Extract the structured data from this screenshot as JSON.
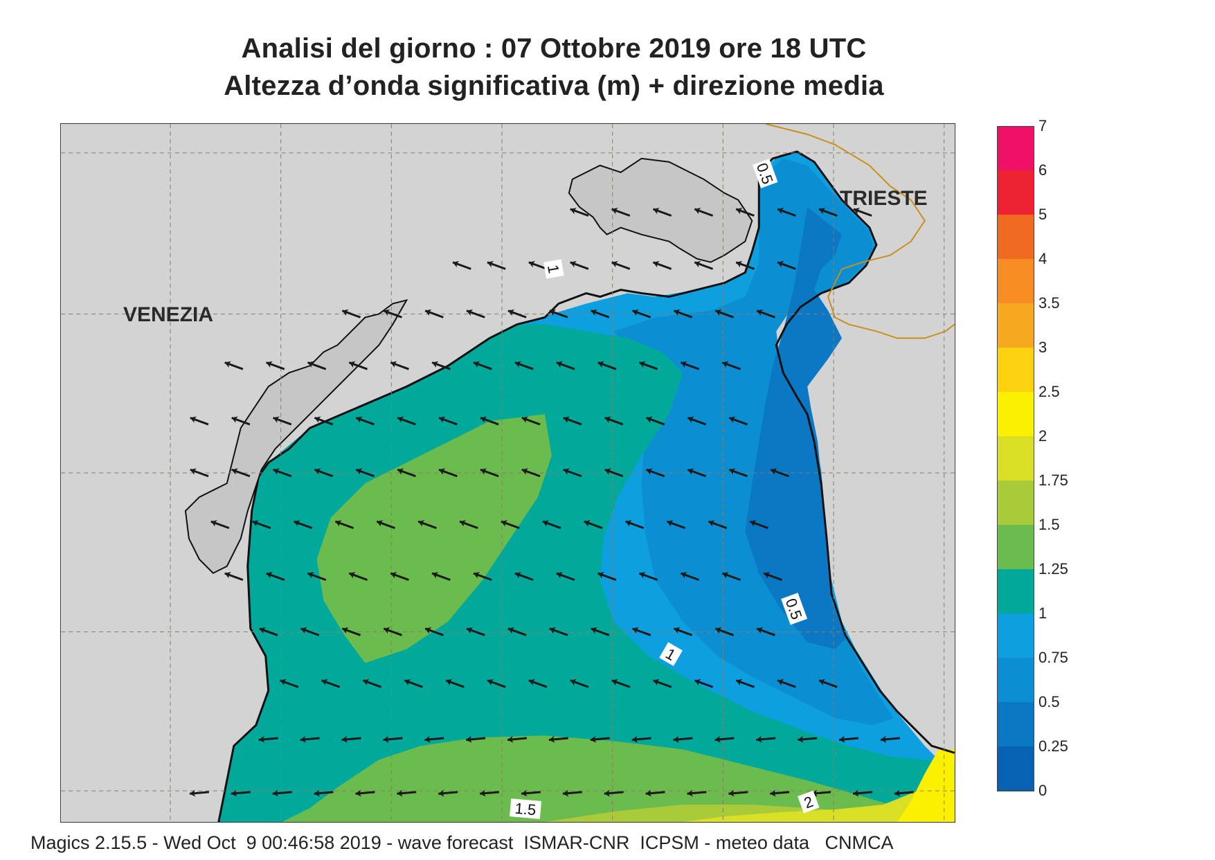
{
  "title": {
    "line1": "Analisi del giorno :  07  Ottobre  2019   ore 18 UTC",
    "line2": "Altezza d’onda significativa (m) + direzione media"
  },
  "cities": {
    "venezia": "VENEZIA",
    "trieste": "TRIESTE"
  },
  "contour_labels": [
    "0.5",
    "1",
    "0.5",
    "1",
    "1.5",
    "2"
  ],
  "legend": {
    "levels": [
      "7",
      "6",
      "5",
      "4",
      "3.5",
      "3",
      "2.5",
      "2",
      "1.75",
      "1.5",
      "1.25",
      "1",
      "0.75",
      "0.5",
      "0.25",
      "0"
    ],
    "colors": [
      "#ee1166",
      "#ee2233",
      "#f06a22",
      "#f68c22",
      "#f6a820",
      "#fcd20e",
      "#fbf000",
      "#d9df24",
      "#a9cb3a",
      "#6cbb4f",
      "#00a99a",
      "#0d9fe0",
      "#0b8fd2",
      "#0a78c4",
      "#0862b4"
    ]
  },
  "footer": "Magics 2.15.5 - Wed Oct  9 00:46:58 2019 - wave forecast  ISMAR-CNR  ICPSM - meteo data   CNMCA"
}
